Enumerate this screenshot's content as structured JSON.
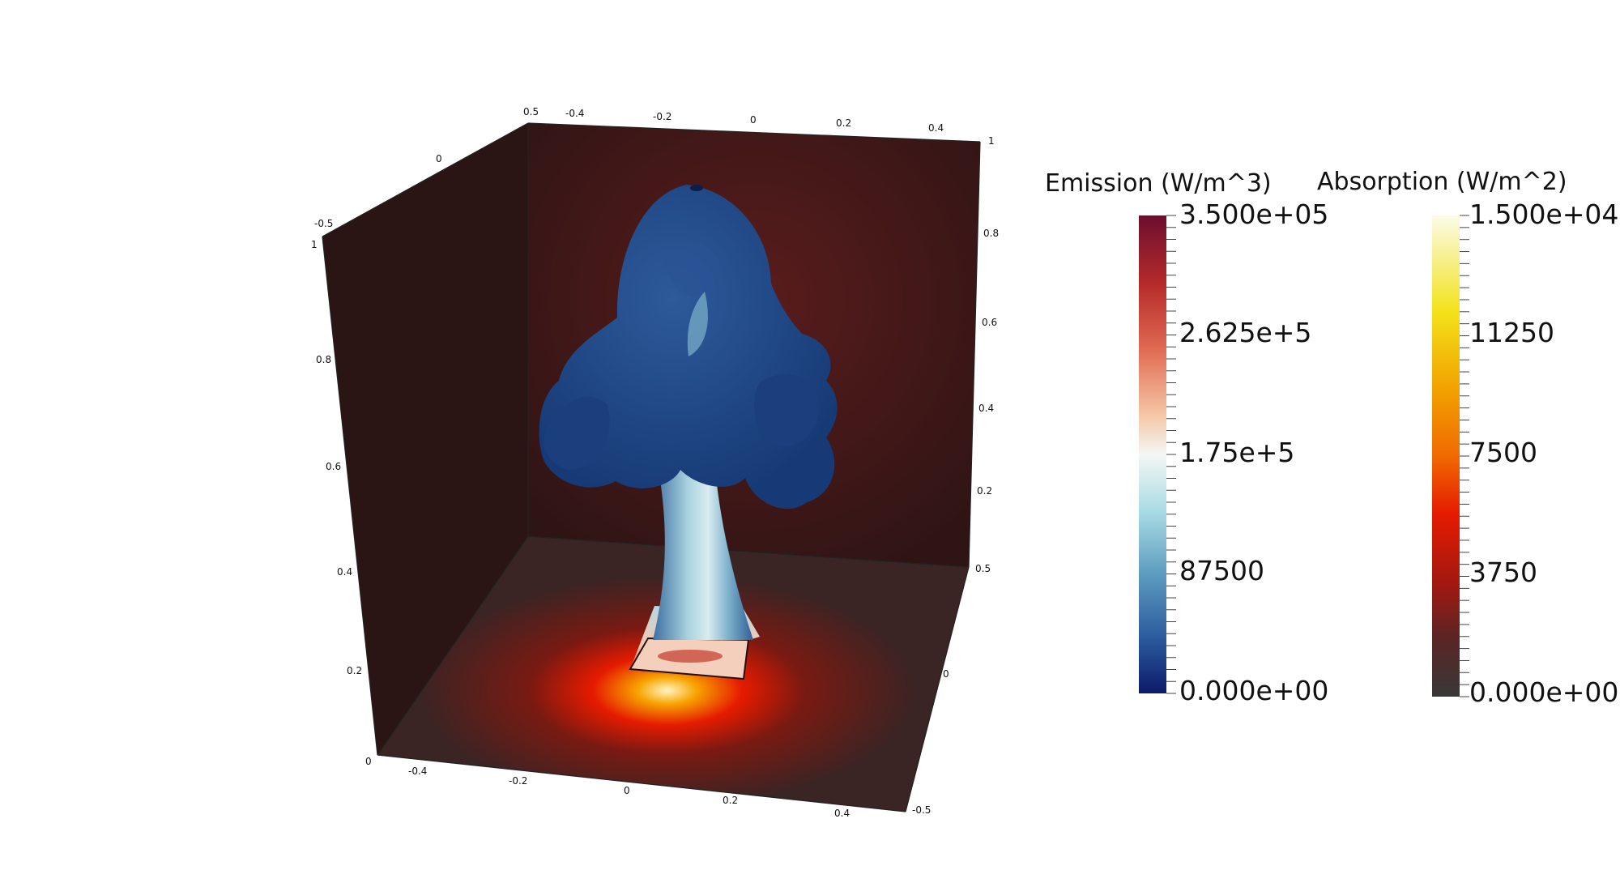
{
  "axes": {
    "x_ticks_top": [
      "0.5",
      "-0.4",
      "-0.2",
      "0",
      "0.2",
      "0.4",
      "1"
    ],
    "left_depth_ticks": [
      "0",
      "-0.5"
    ],
    "z_ticks_left": [
      "1",
      "0.8",
      "0.6",
      "0.4",
      "0.2",
      "0"
    ],
    "z_ticks_right": [
      "0.8",
      "0.6",
      "0.4",
      "0.2",
      "0.5"
    ],
    "y_ticks_right": [
      "0",
      "-0.5"
    ],
    "x_ticks_bottom": [
      "-0.4",
      "-0.2",
      "0",
      "0.2",
      "0.4"
    ]
  },
  "legend_emission": {
    "title": "Emission (W/m^3)",
    "labels": [
      "3.500e+05",
      "2.625e+5",
      "1.75e+5",
      "87500",
      "0.000e+00"
    ],
    "colors": [
      "#6b0f2e",
      "#b42a2a",
      "#e06a52",
      "#f5c8a8",
      "#f4f6f4",
      "#a9dbe4",
      "#5d9cc0",
      "#2d5d9e",
      "#0c1a6a"
    ]
  },
  "legend_absorption": {
    "title": "Absorption (W/m^2)",
    "labels": [
      "1.500e+04",
      "11250",
      "7500",
      "3750",
      "0.000e+00"
    ],
    "colors": [
      "#fbfbe8",
      "#f3e21a",
      "#f2a200",
      "#f06a00",
      "#e51b00",
      "#a51810",
      "#5a2525",
      "#383838"
    ]
  },
  "colors": {
    "back_wall": "#3a1414",
    "left_wall": "#2a1414",
    "floor": "#3a2020",
    "plume": "#1d4585",
    "stem": "#9fc2d4"
  }
}
